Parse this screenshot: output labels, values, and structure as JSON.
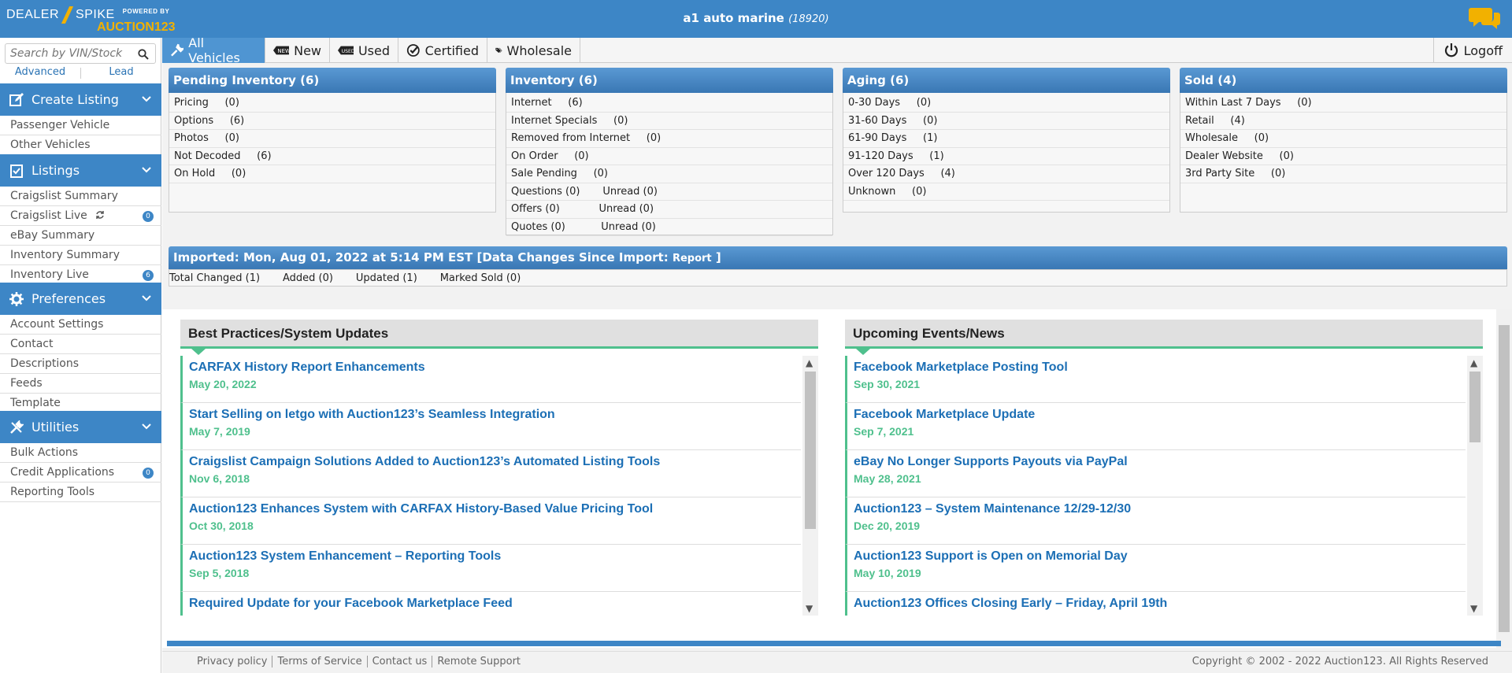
{
  "header": {
    "logo_left": "DEALER",
    "logo_right": "SPIKE",
    "powered_by": "POWERED BY",
    "brand": "AUCTION123",
    "dealer_name": "a1 auto marine",
    "dealer_id": "(18920)",
    "chat_icon": "chat-bubbles-icon",
    "accent_color": "#3d86c6",
    "logo_accent": "#f2b100"
  },
  "sidebar": {
    "search_placeholder": "Search by VIN/Stock",
    "advanced": "Advanced",
    "lead": "Lead",
    "sections": [
      {
        "label": "Create Listing",
        "icon": "edit-icon",
        "items": [
          {
            "label": "Passenger Vehicle"
          },
          {
            "label": "Other Vehicles"
          }
        ]
      },
      {
        "label": "Listings",
        "icon": "clipboard-check-icon",
        "items": [
          {
            "label": "Craigslist Summary"
          },
          {
            "label": "Craigslist Live",
            "badge": "0"
          },
          {
            "label": "eBay Summary"
          },
          {
            "label": "Inventory Summary"
          },
          {
            "label": "Inventory Live",
            "badge": "6"
          }
        ]
      },
      {
        "label": "Preferences",
        "icon": "gear-icon",
        "items": [
          {
            "label": "Account Settings"
          },
          {
            "label": "Contact"
          },
          {
            "label": "Descriptions"
          },
          {
            "label": "Feeds"
          },
          {
            "label": "Template"
          }
        ]
      },
      {
        "label": "Utilities",
        "icon": "tools-icon",
        "items": [
          {
            "label": "Bulk Actions"
          },
          {
            "label": "Credit Applications",
            "badge": "0"
          },
          {
            "label": "Reporting Tools"
          }
        ]
      }
    ]
  },
  "tabs": [
    {
      "label": "All Vehicles",
      "icon": "wrench-icon"
    },
    {
      "label": "New",
      "icon": "new-tag-icon"
    },
    {
      "label": "Used",
      "icon": "used-tag-icon"
    },
    {
      "label": "Certified",
      "icon": "certified-icon"
    },
    {
      "label": "Wholesale",
      "icon": "tags-icon"
    }
  ],
  "logoff": "Logoff",
  "cards": [
    {
      "title": "Pending Inventory   (6)",
      "rows": [
        "Pricing     (0)",
        "Options     (6)",
        "Photos     (0)",
        "Not Decoded     (6)",
        "On Hold     (0)"
      ]
    },
    {
      "title": "Inventory   (6)",
      "rows": [
        "Internet     (6)",
        "Internet Specials     (0)",
        "Removed from Internet     (0)",
        "On Order     (0)",
        "Sale Pending     (0)",
        "Questions (0)       Unread (0)",
        "Offers (0)            Unread (0)",
        "Quotes (0)           Unread (0)"
      ]
    },
    {
      "title": "Aging   (6)",
      "rows": [
        "0-30 Days     (0)",
        "31-60 Days     (0)",
        "61-90 Days     (1)",
        "91-120 Days     (1)",
        "Over 120 Days     (4)",
        "Unknown     (0)"
      ]
    },
    {
      "title": "Sold   (4)",
      "rows": [
        "Within Last 7 Days     (0)",
        "Retail     (4)",
        "Wholesale     (0)",
        "Dealer Website     (0)",
        "3rd Party Site     (0)"
      ]
    }
  ],
  "import": {
    "text": "Imported: Mon, Aug 01, 2022 at 5:14 PM EST [Data Changes Since Import: ",
    "report": "Report",
    "close": " ]",
    "changes": "Total Changed (1)       Added (0)       Updated (1)       Marked Sold (0)"
  },
  "best_practices": {
    "title": "Best Practices/System Updates",
    "items": [
      {
        "title": "CARFAX History Report Enhancements",
        "date": "May 20, 2022"
      },
      {
        "title": "Start Selling on letgo with Auction123’s Seamless Integration",
        "date": "May 7, 2019"
      },
      {
        "title": "Craigslist Campaign Solutions Added to Auction123’s Automated Listing Tools",
        "date": "Nov 6, 2018"
      },
      {
        "title": "Auction123 Enhances System with CARFAX History-Based Value Pricing Tool",
        "date": "Oct 30, 2018"
      },
      {
        "title": "Auction123 System Enhancement – Reporting Tools",
        "date": "Sep 5, 2018"
      },
      {
        "title": "Required Update for your Facebook Marketplace Feed",
        "date": ""
      }
    ]
  },
  "events": {
    "title": "Upcoming Events/News",
    "items": [
      {
        "title": "Facebook Marketplace Posting Tool",
        "date": "Sep 30, 2021"
      },
      {
        "title": "Facebook Marketplace Update",
        "date": "Sep 7, 2021"
      },
      {
        "title": "eBay No Longer Supports Payouts via PayPal",
        "date": "May 28, 2021"
      },
      {
        "title": "Auction123 – System Maintenance 12/29-12/30",
        "date": "Dec 20, 2019"
      },
      {
        "title": "Auction123 Support is Open on Memorial Day",
        "date": "May 10, 2019"
      },
      {
        "title": "Auction123 Offices Closing Early – Friday, April 19th",
        "date": ""
      }
    ]
  },
  "footer": {
    "links": [
      "Privacy policy",
      "Terms of Service",
      "Contact us",
      "Remote Support"
    ],
    "copyright": "Copyright © 2002 - 2022 Auction123. All Rights Reserved"
  }
}
